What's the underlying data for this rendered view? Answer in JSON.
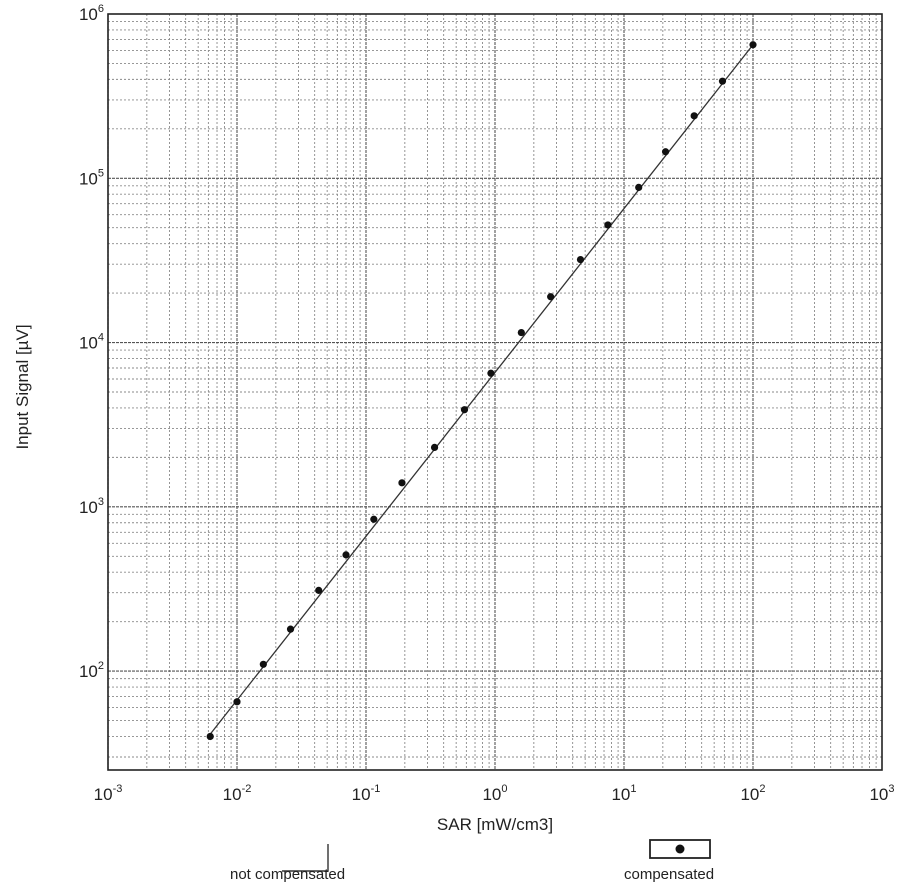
{
  "chart_data": {
    "type": "scatter",
    "x_scale": "log",
    "y_scale": "log",
    "xlabel": "SAR [mW/cm3]",
    "ylabel": "Input Signal [µV]",
    "xlim": [
      0.001,
      1000
    ],
    "ylim": [
      25,
      1000000
    ],
    "grid": true,
    "x_ticks": [
      {
        "value": 0.001,
        "base": "10",
        "exp": "-3"
      },
      {
        "value": 0.01,
        "base": "10",
        "exp": "-2"
      },
      {
        "value": 0.1,
        "base": "10",
        "exp": "-1"
      },
      {
        "value": 1,
        "base": "10",
        "exp": "0"
      },
      {
        "value": 10,
        "base": "10",
        "exp": "1"
      },
      {
        "value": 100,
        "base": "10",
        "exp": "2"
      },
      {
        "value": 1000,
        "base": "10",
        "exp": "3"
      }
    ],
    "y_ticks": [
      {
        "value": 100,
        "base": "10",
        "exp": "2"
      },
      {
        "value": 1000,
        "base": "10",
        "exp": "3"
      },
      {
        "value": 10000,
        "base": "10",
        "exp": "4"
      },
      {
        "value": 100000,
        "base": "10",
        "exp": "5"
      },
      {
        "value": 1000000,
        "base": "10",
        "exp": "6"
      }
    ],
    "series": [
      {
        "name": "not compensated",
        "style": "line",
        "color": "#333333",
        "points": [
          [
            0.006,
            40
          ],
          [
            100,
            650000
          ]
        ]
      },
      {
        "name": "compensated",
        "style": "markers",
        "color": "#111111",
        "points": [
          [
            0.0062,
            40
          ],
          [
            0.01,
            65
          ],
          [
            0.016,
            110
          ],
          [
            0.026,
            180
          ],
          [
            0.043,
            310
          ],
          [
            0.07,
            510
          ],
          [
            0.115,
            840
          ],
          [
            0.19,
            1400
          ],
          [
            0.34,
            2300
          ],
          [
            0.58,
            3900
          ],
          [
            0.93,
            6500
          ],
          [
            1.6,
            11500
          ],
          [
            2.7,
            19000
          ],
          [
            4.6,
            32000
          ],
          [
            7.5,
            52000
          ],
          [
            13,
            88000
          ],
          [
            21,
            145000
          ],
          [
            35,
            240000
          ],
          [
            58,
            390000
          ],
          [
            100,
            650000
          ]
        ]
      }
    ]
  },
  "legend": {
    "not_compensated_label": "not compensated",
    "compensated_label": "compensated"
  }
}
